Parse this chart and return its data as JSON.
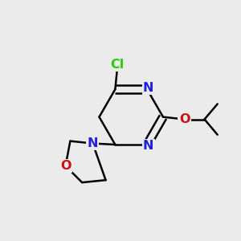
{
  "background_color": "#ebebeb",
  "bond_color": "#000000",
  "N_color": "#2020dd",
  "O_color": "#cc1010",
  "Cl_color": "#22cc00",
  "line_width": 1.8,
  "font_size": 11.5,
  "fig_w": 3.0,
  "fig_h": 3.0,
  "dpi": 100,
  "xlim": [
    0,
    1
  ],
  "ylim": [
    0,
    1
  ]
}
